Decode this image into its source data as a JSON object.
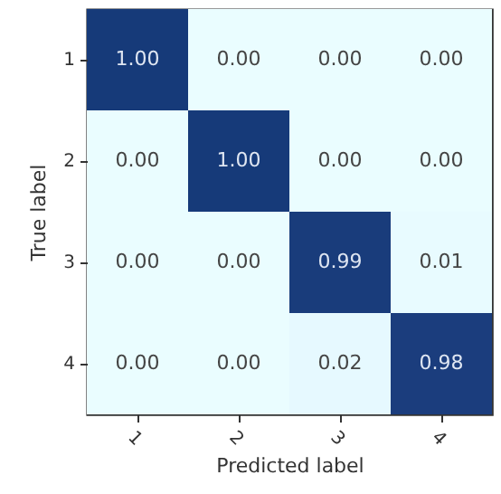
{
  "chart_data": {
    "type": "heatmap",
    "xlabel": "Predicted label",
    "ylabel": "True label",
    "categories": [
      "1",
      "2",
      "3",
      "4"
    ],
    "y_categories": [
      "1",
      "2",
      "3",
      "4"
    ],
    "cells": [
      [
        1.0,
        0.0,
        0.0,
        0.0
      ],
      [
        0.0,
        1.0,
        0.0,
        0.0
      ],
      [
        0.0,
        0.0,
        0.99,
        0.01
      ],
      [
        0.0,
        0.0,
        0.02,
        0.98
      ]
    ],
    "cell_labels": [
      [
        "1.00",
        "0.00",
        "0.00",
        "0.00"
      ],
      [
        "0.00",
        "1.00",
        "0.00",
        "0.00"
      ],
      [
        "0.00",
        "0.00",
        "0.99",
        "0.01"
      ],
      [
        "0.00",
        "0.00",
        "0.02",
        "0.98"
      ]
    ]
  }
}
